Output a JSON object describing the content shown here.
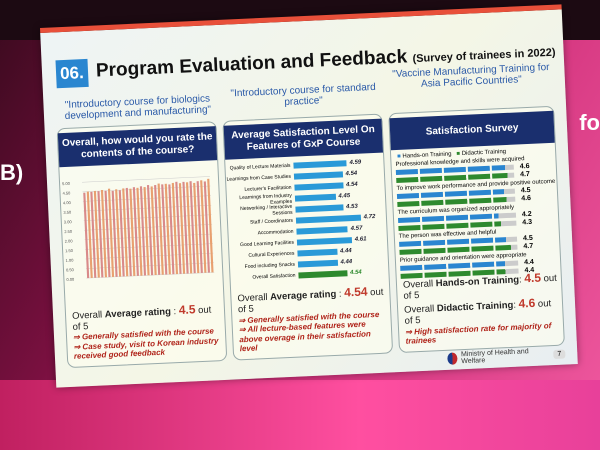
{
  "background": {
    "left_text": "B)",
    "right_text": "fo"
  },
  "slide": {
    "number": "06.",
    "title": "Program Evaluation and Feedback",
    "subtitle": "(Survey of trainees in 2022)",
    "page": "7",
    "ministry": "Ministry of Health and Welfare"
  },
  "courses": [
    {
      "caption": "\"Introductory course for biologics development and manufacturing\"",
      "header": "Overall, how would you rate the contents of the course?",
      "overall_prefix": "Overall ",
      "overall_label": "Average rating",
      "overall_value": "4.5",
      "overall_suffix": " out of 5",
      "notes": [
        "⇒ Generally satisfied with the course",
        "⇒ Case study, visit to Korean industry received good feedback"
      ]
    },
    {
      "caption": "\"Introductory course for standard practice\"",
      "header": "Average Satisfaction Level On Features of GxP Course",
      "overall_prefix": "Overall ",
      "overall_label": "Average rating",
      "overall_value": "4.54",
      "overall_suffix": " out of 5",
      "notes": [
        "⇒ Generally satisfied with the course",
        "⇒ All lecture-based features were above overage in their satisfaction level"
      ]
    },
    {
      "caption": "\"Vaccine Manufacturing Training for Asia Pacific Countries\"",
      "header": "Satisfaction Survey",
      "lines": [
        {
          "prefix": "Overall ",
          "label": "Hands-on Training",
          "value": "4.5",
          "suffix": " out of 5"
        },
        {
          "prefix": "Overall ",
          "label": "Didactic Training",
          "value": "4.6",
          "suffix": " out of 5"
        }
      ],
      "notes": [
        "⇒ High satisfaction rate for majority of trainees"
      ]
    }
  ],
  "chart_data": [
    {
      "type": "bar",
      "title": "Overall, how would you rate the contents of the course?",
      "yticks": [
        "5.00",
        "4.50",
        "4.00",
        "3.50",
        "3.00",
        "2.50",
        "2.00",
        "1.50",
        "1.00",
        "0.50",
        "0.00"
      ],
      "ylim": [
        0,
        5
      ],
      "values": [
        4.45,
        4.5,
        4.48,
        4.52,
        4.5,
        4.55,
        4.5,
        4.6,
        4.48,
        4.55,
        4.5,
        4.58,
        4.6,
        4.55,
        4.62,
        4.58,
        4.65,
        4.6,
        4.7,
        4.62,
        4.68,
        4.75,
        4.7,
        4.72,
        4.68,
        4.75,
        4.8,
        4.72,
        4.78,
        4.75,
        4.8,
        4.7,
        4.78,
        4.82,
        4.75,
        4.88
      ]
    },
    {
      "type": "bar",
      "orientation": "horizontal",
      "categories": [
        "Quality of Lecture Materials",
        "Learnings from Case Studies",
        "Lecturer's Facilitation",
        "Learnings from Industry Examples",
        "Networking / Interactive Sessions",
        "Staff / Coordinators",
        "Accommodation",
        "Good Learning Facilities",
        "Cultural Experiences",
        "Food including Snacks",
        "Overall Satisfaction"
      ],
      "values": [
        4.59,
        4.54,
        4.54,
        4.45,
        4.53,
        4.72,
        4.57,
        4.61,
        4.44,
        4.44,
        4.54
      ],
      "labels": [
        "4.59",
        "4.54",
        "4.54",
        "4.45",
        "4.53",
        "4.72",
        "4.57",
        "4.61",
        "4.44",
        "4.44",
        "4.54"
      ]
    },
    {
      "type": "bar",
      "orientation": "horizontal",
      "legend": [
        "Hands-on Training",
        "Didactic Training"
      ],
      "colors": [
        "#2a86d0",
        "#2e8a2e"
      ],
      "xlim": [
        0,
        5
      ],
      "categories": [
        "Professional knowledge and skills were acquired",
        "To improve work performance and provide positive outcome",
        "The curriculum was organized appropriately",
        "The person was effective and helpful",
        "Prior guidance and orientation were appropriate"
      ],
      "series": [
        {
          "name": "Hands-on Training",
          "values": [
            4.6,
            4.5,
            4.2,
            4.5,
            4.4
          ],
          "labels": [
            "4.6",
            "4.5",
            "4.2",
            "4.5",
            "4.4"
          ]
        },
        {
          "name": "Didactic Training",
          "values": [
            4.7,
            4.6,
            4.3,
            4.7,
            4.4
          ],
          "labels": [
            "4.7",
            "4.6",
            "4.3",
            "4.7",
            "4.4"
          ]
        }
      ]
    }
  ]
}
